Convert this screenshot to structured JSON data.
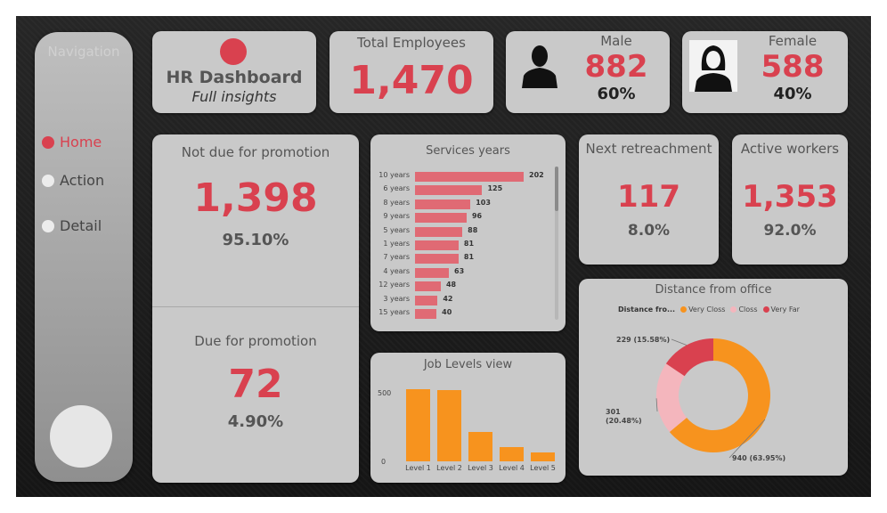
{
  "navigation": {
    "title": "Navigation",
    "items": [
      {
        "label": "Home",
        "active": true
      },
      {
        "label": "Action",
        "active": false
      },
      {
        "label": "Detail",
        "active": false
      }
    ]
  },
  "header": {
    "title": "HR Dashboard",
    "subtitle": "Full insights"
  },
  "total_employees": {
    "label": "Total Employees",
    "value": "1,470"
  },
  "male": {
    "label": "Male",
    "value": "882",
    "percent": "60%",
    "icon": "male-user-icon"
  },
  "female": {
    "label": "Female",
    "value": "588",
    "percent": "40%",
    "icon": "female-user-icon"
  },
  "promotion": {
    "not_due": {
      "label": "Not due for promotion",
      "value": "1,398",
      "percent": "95.10%"
    },
    "due": {
      "label": "Due for promotion",
      "value": "72",
      "percent": "4.90%"
    }
  },
  "next_retreachment": {
    "label": "Next retreachment",
    "value": "117",
    "percent": "8.0%"
  },
  "active_workers": {
    "label": "Active workers",
    "value": "1,353",
    "percent": "92.0%"
  },
  "colors": {
    "accent": "#d9414f",
    "bar_red": "#e06a74",
    "orange": "#f7931e",
    "pink": "#f4b6bd"
  },
  "chart_data": [
    {
      "type": "bar",
      "orientation": "horizontal",
      "title": "Services years",
      "categories": [
        "10 years",
        "6 years",
        "8 years",
        "9 years",
        "5 years",
        "1 years",
        "7 years",
        "4 years",
        "12 years",
        "3 years",
        "15 years"
      ],
      "values": [
        202,
        125,
        103,
        96,
        88,
        81,
        81,
        63,
        48,
        42,
        40
      ]
    },
    {
      "type": "bar",
      "title": "Job Levels view",
      "categories": [
        "Level 1",
        "Level 2",
        "Level 3",
        "Level 4",
        "Level 5"
      ],
      "values": [
        543,
        534,
        218,
        106,
        69
      ],
      "ylim": [
        0,
        560
      ],
      "yticks": [
        "500",
        "0"
      ]
    },
    {
      "type": "pie",
      "title": "Distance from office",
      "legend_title": "Distance fro...",
      "legend_position": "top",
      "labels": [
        "Very Closs",
        "Closs",
        "Very Far"
      ],
      "values": [
        940,
        301,
        229
      ],
      "data_labels": [
        "940 (63.95%)",
        "301\n(20.48%)",
        "229 (15.58%)"
      ],
      "colors": [
        "#f7931e",
        "#f4b6bd",
        "#d9414f"
      ]
    }
  ]
}
